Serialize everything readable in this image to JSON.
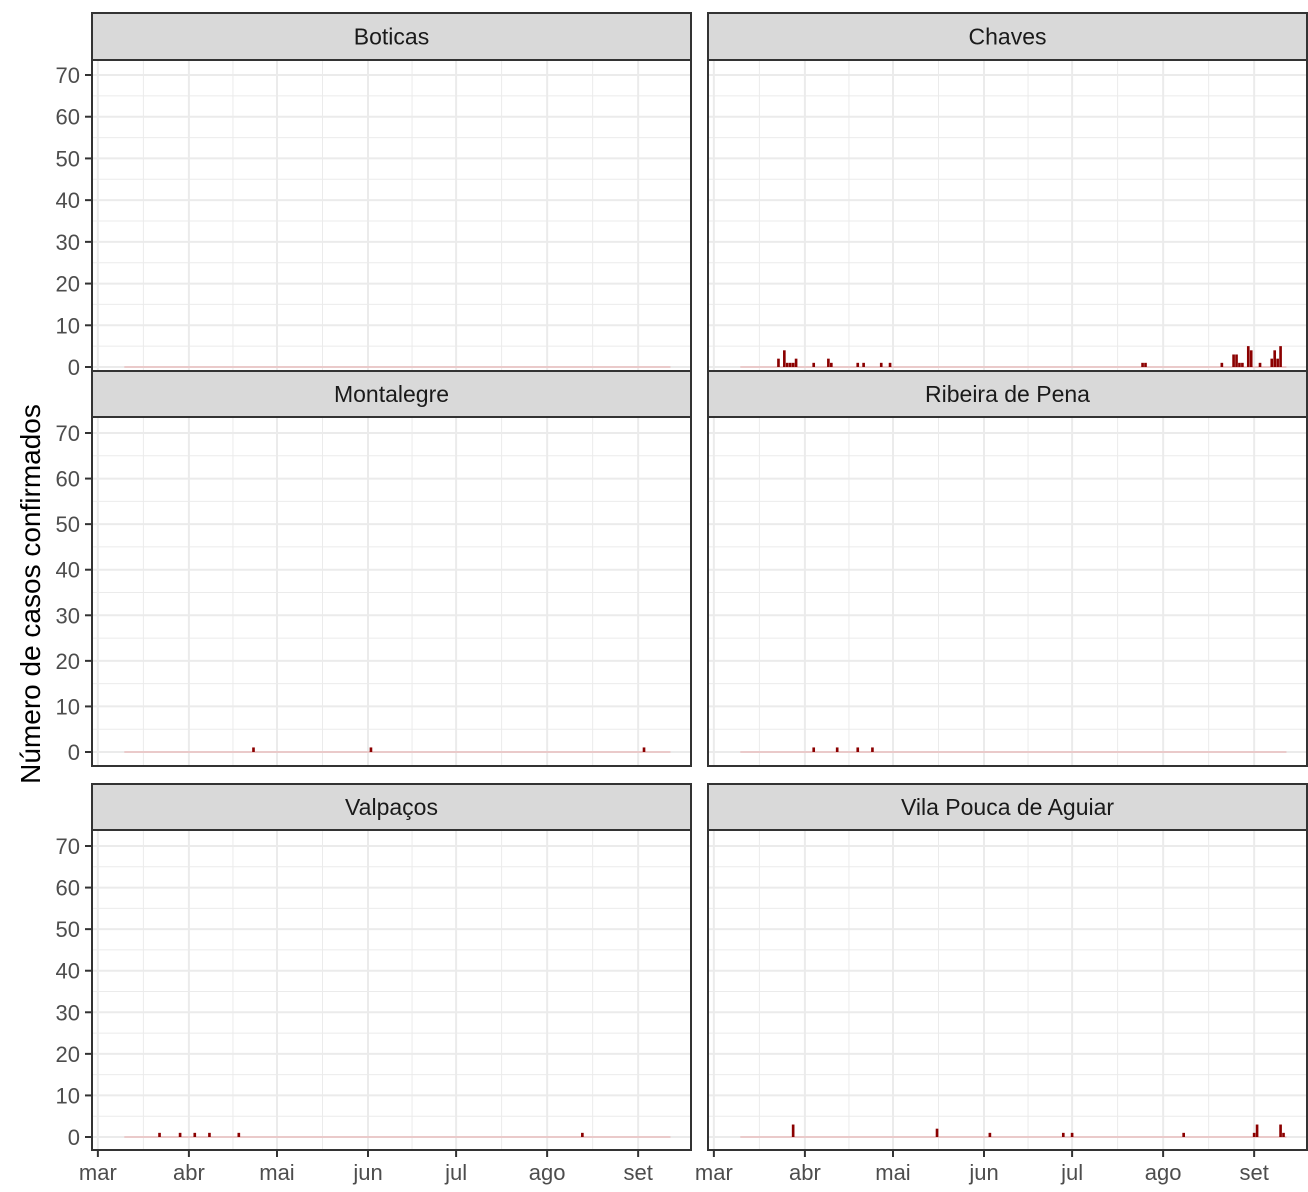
{
  "chart_data": {
    "type": "bar",
    "ylabel": "Número de casos confirmados",
    "xlabel": "",
    "ylim": [
      0,
      75
    ],
    "yticks": [
      "0",
      "10",
      "20",
      "30",
      "40",
      "50",
      "60",
      "70"
    ],
    "x_months": [
      "mar",
      "abr",
      "mai",
      "jun",
      "jul",
      "ago",
      "set"
    ],
    "x_month_starts": [
      "2020-03-01",
      "2020-04-01",
      "2020-05-01",
      "2020-06-01",
      "2020-07-01",
      "2020-08-01",
      "2020-09-01"
    ],
    "x_range": [
      "2020-02-28",
      "2020-09-19"
    ],
    "baseline_range": [
      "2020-03-10",
      "2020-09-12"
    ],
    "grid": true,
    "colors": {
      "bar": "#8b0000",
      "baseline": "#e8a8a8",
      "strip": "#d9d9d9",
      "grid": "#ebebeb",
      "axis_text": "#4d4d4d"
    },
    "facets": [
      {
        "name": "Boticas",
        "points": []
      },
      {
        "name": "Chaves",
        "points": [
          {
            "x": "2020-03-23",
            "y": 2
          },
          {
            "x": "2020-03-25",
            "y": 4
          },
          {
            "x": "2020-03-26",
            "y": 1
          },
          {
            "x": "2020-03-27",
            "y": 1
          },
          {
            "x": "2020-03-28",
            "y": 1
          },
          {
            "x": "2020-03-29",
            "y": 2
          },
          {
            "x": "2020-04-04",
            "y": 1
          },
          {
            "x": "2020-04-09",
            "y": 2
          },
          {
            "x": "2020-04-10",
            "y": 1
          },
          {
            "x": "2020-04-19",
            "y": 1
          },
          {
            "x": "2020-04-21",
            "y": 1
          },
          {
            "x": "2020-04-27",
            "y": 1
          },
          {
            "x": "2020-04-30",
            "y": 1
          },
          {
            "x": "2020-07-25",
            "y": 1
          },
          {
            "x": "2020-07-26",
            "y": 1
          },
          {
            "x": "2020-08-21",
            "y": 1
          },
          {
            "x": "2020-08-25",
            "y": 3
          },
          {
            "x": "2020-08-26",
            "y": 3
          },
          {
            "x": "2020-08-27",
            "y": 1
          },
          {
            "x": "2020-08-28",
            "y": 1
          },
          {
            "x": "2020-08-30",
            "y": 5
          },
          {
            "x": "2020-08-31",
            "y": 4
          },
          {
            "x": "2020-09-03",
            "y": 1
          },
          {
            "x": "2020-09-07",
            "y": 2
          },
          {
            "x": "2020-09-08",
            "y": 4
          },
          {
            "x": "2020-09-09",
            "y": 2
          },
          {
            "x": "2020-09-10",
            "y": 5
          }
        ]
      },
      {
        "name": "Montalegre",
        "points": [
          {
            "x": "2020-04-23",
            "y": 1
          },
          {
            "x": "2020-06-02",
            "y": 1
          },
          {
            "x": "2020-09-03",
            "y": 1
          }
        ]
      },
      {
        "name": "Ribeira de Pena",
        "points": [
          {
            "x": "2020-04-04",
            "y": 1
          },
          {
            "x": "2020-04-12",
            "y": 1
          },
          {
            "x": "2020-04-19",
            "y": 1
          },
          {
            "x": "2020-04-24",
            "y": 1
          }
        ]
      },
      {
        "name": "Valpaços",
        "points": [
          {
            "x": "2020-03-22",
            "y": 1
          },
          {
            "x": "2020-03-29",
            "y": 1
          },
          {
            "x": "2020-04-03",
            "y": 1
          },
          {
            "x": "2020-04-08",
            "y": 1
          },
          {
            "x": "2020-04-18",
            "y": 1
          },
          {
            "x": "2020-08-13",
            "y": 1
          }
        ]
      },
      {
        "name": "Vila Pouca de Aguiar",
        "points": [
          {
            "x": "2020-03-28",
            "y": 3
          },
          {
            "x": "2020-05-16",
            "y": 2
          },
          {
            "x": "2020-06-03",
            "y": 1
          },
          {
            "x": "2020-06-28",
            "y": 1
          },
          {
            "x": "2020-07-01",
            "y": 1
          },
          {
            "x": "2020-08-08",
            "y": 1
          },
          {
            "x": "2020-09-01",
            "y": 1
          },
          {
            "x": "2020-09-02",
            "y": 3
          },
          {
            "x": "2020-09-10",
            "y": 3
          },
          {
            "x": "2020-09-11",
            "y": 1
          }
        ]
      }
    ]
  }
}
